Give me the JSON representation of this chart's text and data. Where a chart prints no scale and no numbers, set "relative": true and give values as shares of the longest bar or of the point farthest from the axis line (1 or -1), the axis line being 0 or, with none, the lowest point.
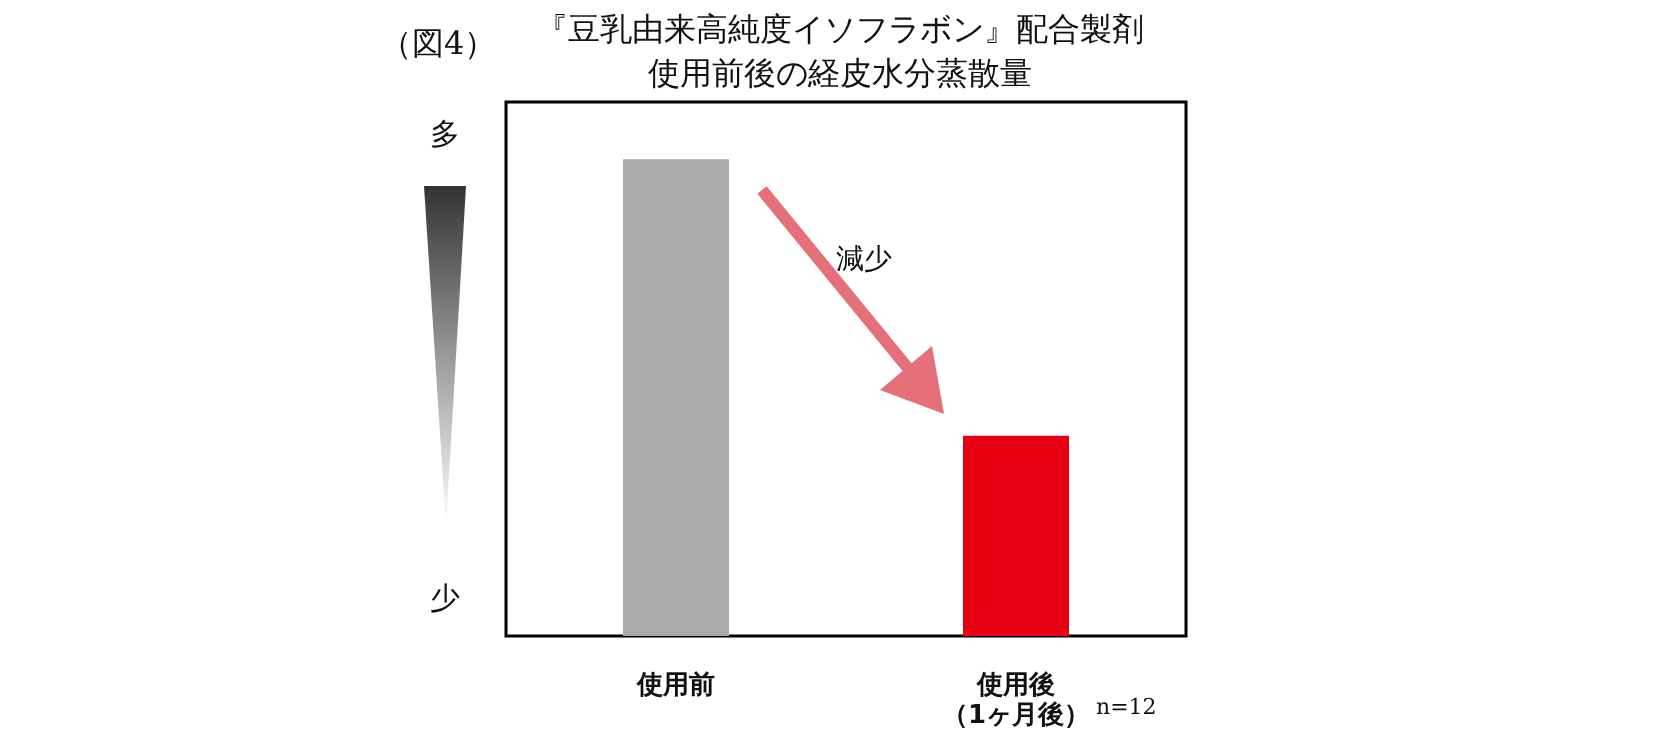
{
  "chart_data": {
    "type": "bar",
    "title": "『豆乳由来高純度イソフラボン』配合製剤",
    "subtitle": "使用前後の経皮水分蒸散量",
    "categories": [
      "使用前",
      "使用後（1ヶ月後）"
    ],
    "values": [
      1,
      0.42
    ],
    "colors": [
      "#aaaaaa",
      "#e60012"
    ],
    "relative": true,
    "annotations": [
      "（図4）",
      "多",
      "少",
      "減少",
      "n=12"
    ]
  }
}
